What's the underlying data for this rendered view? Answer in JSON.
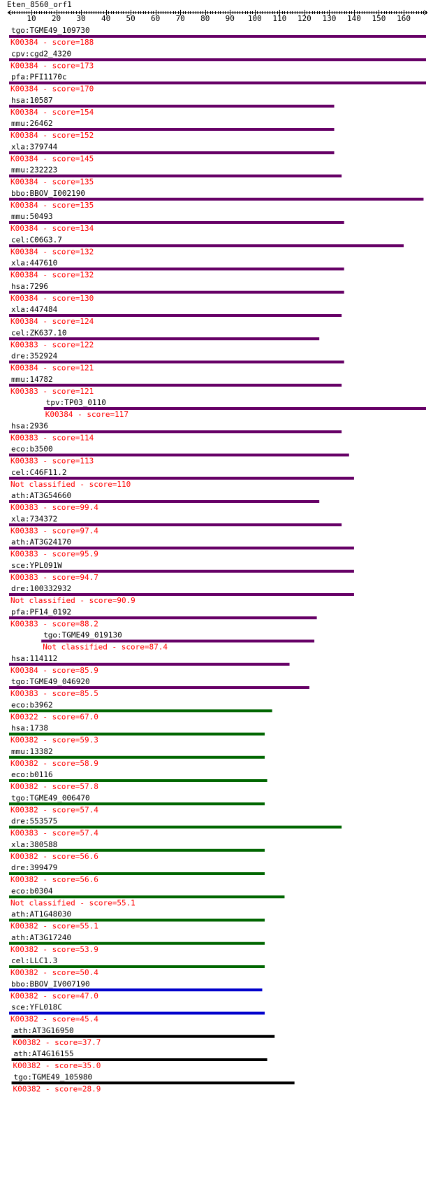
{
  "chart_data": {
    "type": "bar",
    "query": "Eten_8560_orf1",
    "xlim": [
      1,
      169
    ],
    "ticks": [
      10,
      20,
      30,
      40,
      50,
      60,
      70,
      80,
      90,
      100,
      110,
      120,
      130,
      140,
      150,
      160
    ],
    "colors": {
      "purple": "#660066",
      "green": "#006600",
      "blue": "#0000cc",
      "black": "#000000",
      "score_text": "#ff0000"
    },
    "hits": [
      {
        "name": "tgo:TGME49_109730",
        "label": "K00384 - score=188",
        "start": 1,
        "end": 169,
        "color": "purple"
      },
      {
        "name": "cpv:cgd2_4320",
        "label": "K00384 - score=173",
        "start": 1,
        "end": 169,
        "color": "purple"
      },
      {
        "name": "pfa:PFI1170c",
        "label": "K00384 - score=170",
        "start": 1,
        "end": 169,
        "color": "purple"
      },
      {
        "name": "hsa:10587",
        "label": "K00384 - score=154",
        "start": 1,
        "end": 132,
        "color": "purple"
      },
      {
        "name": "mmu:26462",
        "label": "K00384 - score=152",
        "start": 1,
        "end": 132,
        "color": "purple"
      },
      {
        "name": "xla:379744",
        "label": "K00384 - score=145",
        "start": 1,
        "end": 132,
        "color": "purple"
      },
      {
        "name": "mmu:232223",
        "label": "K00384 - score=135",
        "start": 1,
        "end": 135,
        "color": "purple"
      },
      {
        "name": "bbo:BBOV_I002190",
        "label": "K00384 - score=135",
        "start": 1,
        "end": 168,
        "color": "purple"
      },
      {
        "name": "mmu:50493",
        "label": "K00384 - score=134",
        "start": 1,
        "end": 136,
        "color": "purple"
      },
      {
        "name": "cel:C06G3.7",
        "label": "K00384 - score=132",
        "start": 1,
        "end": 160,
        "color": "purple"
      },
      {
        "name": "xla:447610",
        "label": "K00384 - score=132",
        "start": 1,
        "end": 136,
        "color": "purple"
      },
      {
        "name": "hsa:7296",
        "label": "K00384 - score=130",
        "start": 1,
        "end": 136,
        "color": "purple"
      },
      {
        "name": "xla:447484",
        "label": "K00384 - score=124",
        "start": 1,
        "end": 135,
        "color": "purple"
      },
      {
        "name": "cel:ZK637.10",
        "label": "K00383 - score=122",
        "start": 1,
        "end": 126,
        "color": "purple"
      },
      {
        "name": "dre:352924",
        "label": "K00384 - score=121",
        "start": 1,
        "end": 136,
        "color": "purple"
      },
      {
        "name": "mmu:14782",
        "label": "K00383 - score=121",
        "start": 1,
        "end": 135,
        "color": "purple"
      },
      {
        "name": "tpv:TP03_0110",
        "label": "K00384 - score=117",
        "start": 15,
        "end": 169,
        "color": "purple"
      },
      {
        "name": "hsa:2936",
        "label": "K00383 - score=114",
        "start": 1,
        "end": 135,
        "color": "purple"
      },
      {
        "name": "eco:b3500",
        "label": "K00383 - score=113",
        "start": 1,
        "end": 138,
        "color": "purple"
      },
      {
        "name": "cel:C46F11.2",
        "label": "Not classified - score=110",
        "start": 1,
        "end": 140,
        "color": "purple"
      },
      {
        "name": "ath:AT3G54660",
        "label": "K00383 - score=99.4",
        "start": 1,
        "end": 126,
        "color": "purple"
      },
      {
        "name": "xla:734372",
        "label": "K00383 - score=97.4",
        "start": 1,
        "end": 135,
        "color": "purple"
      },
      {
        "name": "ath:AT3G24170",
        "label": "K00383 - score=95.9",
        "start": 1,
        "end": 140,
        "color": "purple"
      },
      {
        "name": "sce:YPL091W",
        "label": "K00383 - score=94.7",
        "start": 1,
        "end": 140,
        "color": "purple"
      },
      {
        "name": "dre:100332932",
        "label": "Not classified - score=90.9",
        "start": 1,
        "end": 140,
        "color": "purple"
      },
      {
        "name": "pfa:PF14_0192",
        "label": "K00383 - score=88.2",
        "start": 1,
        "end": 125,
        "color": "purple"
      },
      {
        "name": "tgo:TGME49_019130",
        "label": "Not classified - score=87.4",
        "start": 14,
        "end": 124,
        "color": "purple"
      },
      {
        "name": "hsa:114112",
        "label": "K00384 - score=85.9",
        "start": 1,
        "end": 114,
        "color": "purple"
      },
      {
        "name": "tgo:TGME49_046920",
        "label": "K00383 - score=85.5",
        "start": 1,
        "end": 122,
        "color": "purple"
      },
      {
        "name": "eco:b3962",
        "label": "K00322 - score=67.0",
        "start": 1,
        "end": 107,
        "color": "green"
      },
      {
        "name": "hsa:1738",
        "label": "K00382 - score=59.3",
        "start": 1,
        "end": 104,
        "color": "green"
      },
      {
        "name": "mmu:13382",
        "label": "K00382 - score=58.9",
        "start": 1,
        "end": 104,
        "color": "green"
      },
      {
        "name": "eco:b0116",
        "label": "K00382 - score=57.8",
        "start": 1,
        "end": 105,
        "color": "green"
      },
      {
        "name": "tgo:TGME49_006470",
        "label": "K00382 - score=57.4",
        "start": 1,
        "end": 104,
        "color": "green"
      },
      {
        "name": "dre:553575",
        "label": "K00383 - score=57.4",
        "start": 1,
        "end": 135,
        "color": "green"
      },
      {
        "name": "xla:380588",
        "label": "K00382 - score=56.6",
        "start": 1,
        "end": 104,
        "color": "green"
      },
      {
        "name": "dre:399479",
        "label": "K00382 - score=56.6",
        "start": 1,
        "end": 104,
        "color": "green"
      },
      {
        "name": "eco:b0304",
        "label": "Not classified - score=55.1",
        "start": 1,
        "end": 112,
        "color": "green"
      },
      {
        "name": "ath:AT1G48030",
        "label": "K00382 - score=55.1",
        "start": 1,
        "end": 104,
        "color": "green"
      },
      {
        "name": "ath:AT3G17240",
        "label": "K00382 - score=53.9",
        "start": 1,
        "end": 104,
        "color": "green"
      },
      {
        "name": "cel:LLC1.3",
        "label": "K00382 - score=50.4",
        "start": 1,
        "end": 104,
        "color": "green"
      },
      {
        "name": "bbo:BBOV_IV007190",
        "label": "K00382 - score=47.0",
        "start": 1,
        "end": 103,
        "color": "blue"
      },
      {
        "name": "sce:YFL018C",
        "label": "K00382 - score=45.4",
        "start": 1,
        "end": 104,
        "color": "blue"
      },
      {
        "name": "ath:AT3G16950",
        "label": "K00382 - score=37.7",
        "start": 2,
        "end": 108,
        "color": "black"
      },
      {
        "name": "ath:AT4G16155",
        "label": "K00382 - score=35.0",
        "start": 2,
        "end": 105,
        "color": "black"
      },
      {
        "name": "tgo:TGME49_105980",
        "label": "K00382 - score=28.9",
        "start": 2,
        "end": 116,
        "color": "black"
      }
    ]
  }
}
